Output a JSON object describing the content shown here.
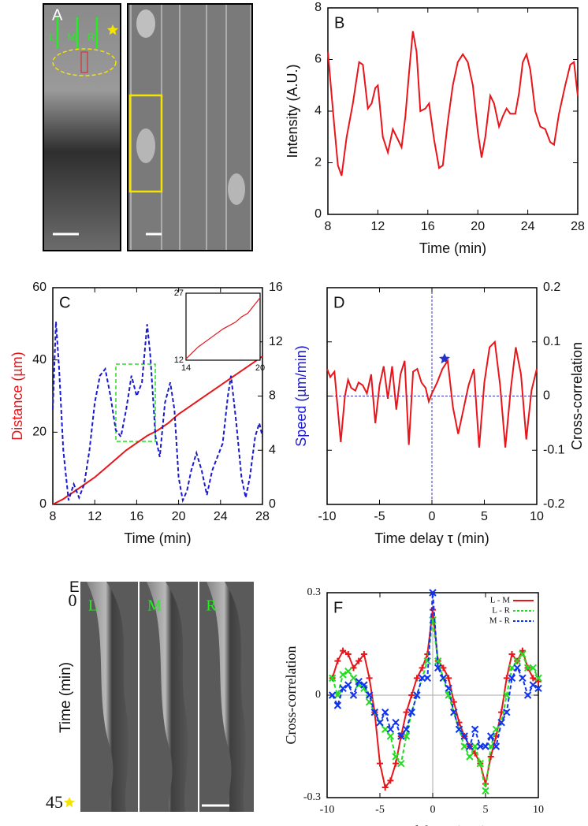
{
  "images": [
    {
      "panel": "A",
      "labels": [
        "L",
        "M",
        "R"
      ]
    },
    {
      "panel": "E",
      "labels": [
        "L",
        "M",
        "R"
      ],
      "ylabel": "Time (min)",
      "yticks": [
        0,
        45
      ]
    }
  ],
  "chart_data": [
    {
      "type": "line",
      "panel": "B",
      "xlabel": "Time (min)",
      "ylabel": "Intensity (A.U.)",
      "xlim": [
        8,
        28
      ],
      "ylim": [
        0,
        8
      ],
      "xticks": [
        8,
        12,
        16,
        20,
        24,
        28
      ],
      "yticks": [
        0,
        2,
        4,
        6,
        8
      ],
      "series": [
        {
          "color": "#e8151b",
          "linestyle": "solid",
          "x": [
            8,
            8.5,
            8.8,
            9.1,
            9.5,
            10,
            10.5,
            10.8,
            11.2,
            11.5,
            11.8,
            12,
            12.4,
            12.8,
            13.2,
            13.6,
            13.9,
            14.2,
            14.5,
            14.8,
            15.1,
            15.4,
            15.8,
            16.1,
            16.5,
            16.9,
            17.2,
            17.6,
            18,
            18.4,
            18.8,
            19.2,
            19.6,
            20,
            20.3,
            20.6,
            21,
            21.3,
            21.7,
            22,
            22.3,
            22.6,
            23,
            23.3,
            23.6,
            23.9,
            24.2,
            24.6,
            25,
            25.4,
            25.8,
            26.1,
            26.5,
            27,
            27.4,
            27.7,
            28
          ],
          "values": [
            6.3,
            3.5,
            1.9,
            1.5,
            3.0,
            4.3,
            5.9,
            5.8,
            4.1,
            4.3,
            4.9,
            5.0,
            3.0,
            2.4,
            3.3,
            2.9,
            2.6,
            3.8,
            5.5,
            7.1,
            6.3,
            4.0,
            4.1,
            4.3,
            2.9,
            1.8,
            1.9,
            3.6,
            5.0,
            5.9,
            6.2,
            5.9,
            5.0,
            3.2,
            2.2,
            3.0,
            4.6,
            4.3,
            3.4,
            3.8,
            4.1,
            3.9,
            3.9,
            4.7,
            5.9,
            6.2,
            5.6,
            4.0,
            3.4,
            3.3,
            2.8,
            2.7,
            3.9,
            5.0,
            5.8,
            5.9,
            4.6
          ]
        }
      ]
    },
    {
      "type": "line",
      "panel": "C",
      "xlabel": "Time (min)",
      "ylabel": "Distance (µm)",
      "y2label": "Speed (µm/min)",
      "xlim": [
        8,
        28
      ],
      "ylim": [
        0,
        60
      ],
      "y2lim": [
        0,
        16
      ],
      "xticks": [
        8,
        12,
        16,
        20,
        24,
        28
      ],
      "yticks": [
        0,
        20,
        40,
        60
      ],
      "y2ticks": [
        0,
        4,
        8,
        12,
        16
      ],
      "series": [
        {
          "color": "#e8151b",
          "linestyle": "solid",
          "axis": "y",
          "x": [
            8,
            9,
            10,
            11,
            12,
            13,
            14,
            15,
            16,
            17,
            18,
            19,
            20,
            21,
            22,
            23,
            24,
            25,
            26,
            27,
            28
          ],
          "values": [
            0,
            1.5,
            3.5,
            5.5,
            7.5,
            10,
            12.5,
            15,
            17,
            19,
            20.5,
            22.5,
            25,
            27,
            29,
            31,
            33,
            35,
            37,
            39,
            41
          ]
        },
        {
          "color": "#1a1acc",
          "linestyle": "dashed",
          "axis": "y2",
          "x": [
            8,
            8.3,
            8.6,
            9,
            9.5,
            10,
            10.5,
            11,
            11.5,
            12,
            12.5,
            13,
            13.5,
            14,
            14.5,
            15,
            15.5,
            16,
            16.5,
            17,
            17.3,
            17.8,
            18.2,
            18.7,
            19.2,
            19.6,
            20,
            20.4,
            20.8,
            21.2,
            21.7,
            22.2,
            22.7,
            23.2,
            23.7,
            24.2,
            24.7,
            25,
            25.5,
            26,
            26.4,
            26.8,
            27.3,
            27.7,
            28
          ],
          "values": [
            7,
            13.5,
            10,
            4,
            0.3,
            1.5,
            0.5,
            1.5,
            4,
            7.5,
            9.5,
            10,
            8,
            5.5,
            5,
            7,
            9.5,
            8,
            9,
            13.3,
            11,
            5,
            3.5,
            7.5,
            9,
            7,
            2,
            0.3,
            1,
            2.5,
            3.8,
            2.5,
            0.7,
            2.5,
            3.5,
            4.5,
            8,
            9.5,
            6,
            2,
            0.5,
            2,
            5,
            6,
            5
          ]
        }
      ],
      "inset": {
        "xlim": [
          14,
          20
        ],
        "ylim": [
          12,
          27
        ],
        "xticks": [
          14,
          20
        ],
        "yticks": [
          12,
          27
        ],
        "series": [
          {
            "color": "#e8151b",
            "x": [
              14,
              15,
              16,
              17,
              18,
              18.5,
              19,
              20
            ],
            "values": [
              12.3,
              15,
              17,
              19,
              20.5,
              21.7,
              22.5,
              26
            ]
          }
        ]
      }
    },
    {
      "type": "line",
      "panel": "D",
      "xlabel": "Time delay τ (min)",
      "ylabel": "Cross-correlation",
      "y_side": "right",
      "zero_lines": {
        "color": "#3333cc",
        "linestyle": "dashed"
      },
      "xlim": [
        -10,
        10
      ],
      "ylim": [
        -0.2,
        0.2
      ],
      "xticks": [
        -10,
        -5,
        0,
        5,
        10
      ],
      "yticks": [
        -0.2,
        -0.1,
        0,
        0.1,
        0.2
      ],
      "series": [
        {
          "color": "#e8151b",
          "linestyle": "solid",
          "x": [
            -10,
            -9.7,
            -9.3,
            -9,
            -8.7,
            -8.3,
            -8,
            -7.7,
            -7.3,
            -7,
            -6.6,
            -6.2,
            -5.8,
            -5.4,
            -5,
            -4.6,
            -4.2,
            -3.8,
            -3.4,
            -3,
            -2.6,
            -2.2,
            -1.8,
            -1.4,
            -1,
            -0.6,
            -0.3,
            0,
            0.5,
            1,
            1.5,
            2,
            2.5,
            3,
            3.5,
            4,
            4.5,
            5,
            5.5,
            6,
            6.5,
            7,
            7.5,
            8,
            8.5,
            9,
            9.5,
            10
          ],
          "values": [
            0.05,
            0.035,
            0.045,
            -0.02,
            -0.085,
            0,
            0.03,
            0.015,
            0.01,
            0.025,
            0.02,
            0.005,
            0.04,
            -0.05,
            0.02,
            0.055,
            -0.005,
            0.055,
            -0.025,
            0.04,
            0.065,
            -0.09,
            0.045,
            0.05,
            0.025,
            0.015,
            -0.01,
            0.005,
            0.025,
            0.05,
            0.065,
            -0.02,
            -0.07,
            -0.025,
            0.02,
            0.05,
            -0.095,
            0.025,
            0.09,
            0.1,
            0.02,
            -0.095,
            0.01,
            0.09,
            0.04,
            -0.08,
            0.01,
            0.05
          ]
        }
      ]
    },
    {
      "type": "line",
      "panel": "F",
      "xlabel": "Time delay τ (min)",
      "ylabel": "Cross-correlation",
      "legend": "upper right",
      "zero_lines": {
        "color": "#aaaaaa",
        "linestyle": "solid"
      },
      "xlim": [
        -10,
        10
      ],
      "ylim": [
        -0.3,
        0.3
      ],
      "xticks": [
        -10,
        -5,
        0,
        5,
        10
      ],
      "yticks": [
        -0.3,
        0,
        0.3
      ],
      "x": [
        -9.5,
        -9,
        -8.5,
        -8,
        -7.5,
        -7,
        -6.5,
        -6,
        -5.5,
        -5,
        -4.5,
        -4,
        -3.5,
        -3,
        -2.5,
        -2,
        -1.5,
        -1,
        -0.5,
        0,
        0.5,
        1,
        1.5,
        2,
        2.5,
        3,
        3.5,
        4,
        4.5,
        5,
        5.5,
        6,
        6.5,
        7,
        7.5,
        8,
        8.5,
        9,
        9.5,
        10
      ],
      "series": [
        {
          "name": "L - M",
          "color": "#e8151b",
          "linestyle": "solid",
          "marker": "+",
          "values": [
            0.05,
            0.1,
            0.13,
            0.12,
            0.08,
            0.1,
            0.12,
            0.05,
            -0.05,
            -0.2,
            -0.27,
            -0.25,
            -0.2,
            -0.12,
            -0.05,
            0.0,
            0.05,
            0.08,
            0.12,
            0.25,
            0.1,
            0.08,
            0.05,
            -0.02,
            -0.08,
            -0.12,
            -0.15,
            -0.17,
            -0.2,
            -0.26,
            -0.18,
            -0.12,
            -0.05,
            0.05,
            0.12,
            0.1,
            0.13,
            0.08,
            0.05,
            0.04
          ]
        },
        {
          "name": "L - R",
          "color": "#22dd22",
          "linestyle": "dashed",
          "marker": "x",
          "values": [
            0.05,
            0.0,
            0.06,
            0.07,
            0.05,
            0.03,
            0.02,
            -0.02,
            -0.05,
            -0.08,
            -0.1,
            -0.12,
            -0.18,
            -0.2,
            -0.12,
            -0.05,
            0.0,
            0.05,
            0.1,
            0.22,
            0.1,
            0.05,
            0.0,
            -0.05,
            -0.1,
            -0.15,
            -0.18,
            -0.15,
            -0.2,
            -0.28,
            -0.15,
            -0.1,
            -0.08,
            0.0,
            0.08,
            0.1,
            0.12,
            0.08,
            0.08,
            0.05
          ]
        },
        {
          "name": "M - R",
          "color": "#1133ee",
          "linestyle": "dashed",
          "marker": "x",
          "values": [
            0.0,
            -0.03,
            0.02,
            0.03,
            0.0,
            0.04,
            0.03,
            0.0,
            -0.05,
            -0.08,
            -0.05,
            -0.1,
            -0.08,
            -0.12,
            -0.1,
            -0.05,
            0.0,
            0.05,
            0.05,
            0.3,
            0.08,
            0.05,
            0.02,
            -0.05,
            -0.1,
            -0.12,
            -0.15,
            -0.1,
            -0.15,
            -0.15,
            -0.12,
            -0.15,
            -0.08,
            -0.05,
            0.05,
            0.08,
            0.05,
            0.0,
            0.03,
            0.02
          ]
        }
      ]
    }
  ]
}
